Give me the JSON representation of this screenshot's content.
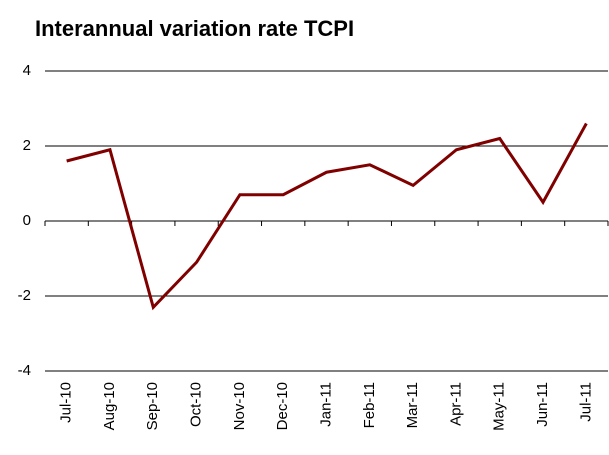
{
  "chart_data": {
    "type": "line",
    "title": "Interannual variation rate TCPI",
    "categories": [
      "Jul-10",
      "Aug-10",
      "Sep-10",
      "Oct-10",
      "Nov-10",
      "Dec-10",
      "Jan-11",
      "Feb-11",
      "Mar-11",
      "Apr-11",
      "May-11",
      "Jun-11",
      "Jul-11"
    ],
    "series": [
      {
        "name": "TCPI",
        "color": "#800000",
        "values": [
          1.6,
          1.9,
          -2.3,
          -1.1,
          0.7,
          0.7,
          1.3,
          1.5,
          0.95,
          1.9,
          2.2,
          0.5,
          2.6
        ]
      }
    ],
    "ylim": [
      -4,
      4
    ],
    "yticks": [
      -4,
      -2,
      0,
      2,
      4
    ],
    "grid": true
  }
}
